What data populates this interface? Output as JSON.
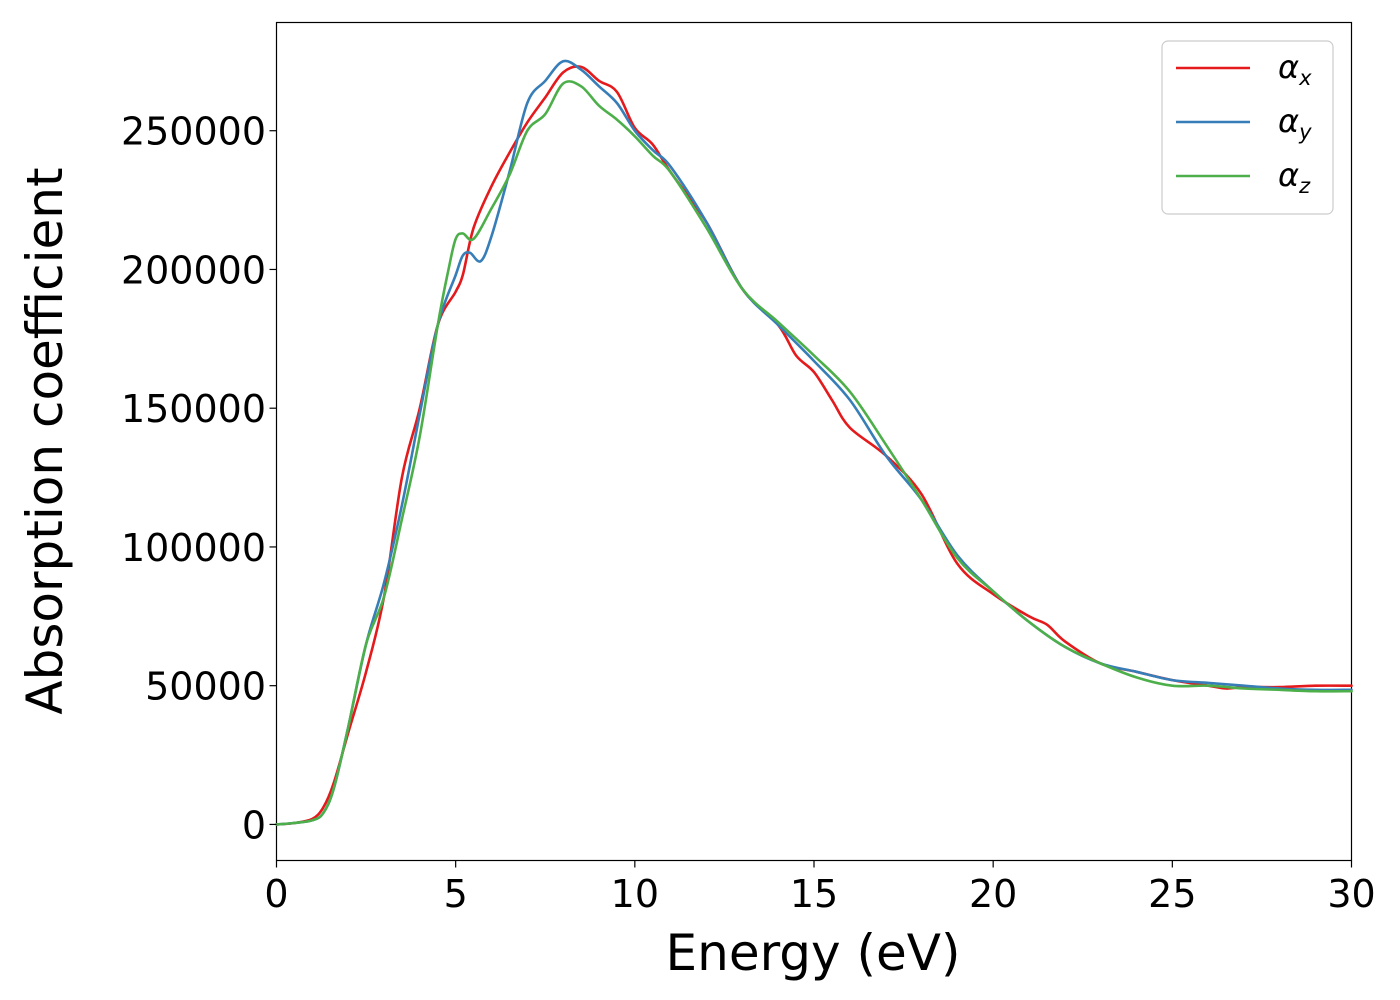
{
  "chart_data": {
    "type": "line",
    "xlabel": "Energy (eV)",
    "ylabel": "Absorption coefficient",
    "xlim": [
      0,
      30
    ],
    "ylim": [
      -13000,
      289000
    ],
    "xticks": [
      0,
      5,
      10,
      15,
      20,
      25,
      30
    ],
    "xtick_labels": [
      "0",
      "5",
      "10",
      "15",
      "20",
      "25",
      "30"
    ],
    "yticks": [
      0,
      50000,
      100000,
      150000,
      200000,
      250000
    ],
    "ytick_labels": [
      "0",
      "50000",
      "100000",
      "150000",
      "200000",
      "250000"
    ],
    "grid": false,
    "legend_position": "top-right",
    "series": [
      {
        "name": "α",
        "subscript": "x",
        "color": "#e41a1c",
        "x": [
          0,
          0.5,
          1.0,
          1.3,
          1.6,
          2.0,
          2.5,
          3.0,
          3.5,
          4.0,
          4.5,
          5.0,
          5.2,
          5.5,
          6.0,
          6.5,
          7.0,
          7.5,
          8.0,
          8.5,
          9.0,
          9.5,
          10.0,
          10.5,
          11.0,
          12.0,
          13.0,
          14.0,
          14.5,
          15.0,
          15.5,
          16.0,
          17.0,
          18.0,
          19.0,
          20.0,
          21.0,
          21.5,
          22.0,
          23.0,
          24.0,
          25.0,
          26.0,
          26.5,
          27.0,
          28.0,
          29.0,
          30.0
        ],
        "y": [
          0,
          500,
          2000,
          6000,
          15000,
          33000,
          55000,
          82000,
          125000,
          150000,
          180000,
          192000,
          198000,
          215000,
          230000,
          242000,
          253000,
          262000,
          271000,
          273000,
          268000,
          264000,
          251000,
          245000,
          235000,
          217000,
          193000,
          180000,
          169000,
          163000,
          153000,
          143000,
          133000,
          119000,
          94000,
          83000,
          75000,
          72000,
          66000,
          58000,
          55000,
          52000,
          50000,
          49000,
          49500,
          49500,
          50000,
          50000
        ]
      },
      {
        "name": "α",
        "subscript": "y",
        "color": "#377eb8",
        "x": [
          0,
          0.5,
          1.0,
          1.3,
          1.6,
          2.0,
          2.5,
          3.0,
          3.5,
          4.0,
          4.5,
          5.0,
          5.2,
          5.4,
          5.7,
          6.0,
          6.5,
          7.0,
          7.5,
          8.0,
          8.5,
          9.0,
          9.5,
          10.0,
          10.5,
          11.0,
          12.0,
          13.0,
          14.0,
          15.0,
          16.0,
          17.0,
          18.0,
          19.0,
          20.0,
          21.0,
          22.0,
          23.0,
          24.0,
          25.0,
          26.0,
          27.0,
          28.0,
          29.0,
          30.0
        ],
        "y": [
          0,
          500,
          1500,
          4000,
          13000,
          35000,
          65000,
          87000,
          115000,
          148000,
          180000,
          198000,
          205000,
          206000,
          203000,
          212000,
          235000,
          260000,
          268000,
          275000,
          272000,
          266000,
          260000,
          250000,
          243000,
          237000,
          217000,
          193000,
          180000,
          167000,
          153000,
          133000,
          117000,
          97000,
          84000,
          73000,
          64000,
          58000,
          55000,
          52000,
          51000,
          50000,
          49000,
          48500,
          48500
        ]
      },
      {
        "name": "α",
        "subscript": "z",
        "color": "#4daf4a",
        "x": [
          0,
          0.5,
          1.0,
          1.3,
          1.6,
          2.0,
          2.5,
          3.0,
          3.5,
          4.0,
          4.5,
          4.8,
          5.0,
          5.2,
          5.5,
          6.0,
          6.5,
          7.0,
          7.5,
          8.0,
          8.5,
          9.0,
          9.5,
          10.0,
          10.5,
          11.0,
          12.0,
          13.0,
          14.0,
          15.0,
          16.0,
          17.0,
          18.0,
          19.0,
          20.0,
          21.0,
          22.0,
          23.0,
          24.0,
          25.0,
          26.0,
          27.0,
          28.0,
          29.0,
          30.0
        ],
        "y": [
          0,
          500,
          1500,
          4000,
          13000,
          35000,
          65000,
          82000,
          110000,
          140000,
          180000,
          200000,
          211000,
          213000,
          211000,
          222000,
          234000,
          250000,
          256000,
          267000,
          266000,
          259000,
          254000,
          248000,
          241000,
          235000,
          215000,
          193000,
          181000,
          169000,
          156000,
          137000,
          117000,
          96000,
          84000,
          73000,
          64000,
          58000,
          53000,
          50000,
          50000,
          49000,
          48500,
          48000,
          48000
        ]
      }
    ]
  }
}
